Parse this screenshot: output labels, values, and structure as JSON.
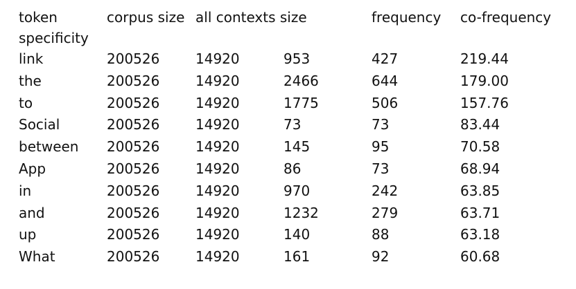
{
  "table": {
    "headers": [
      "token specificity",
      "corpus size",
      "all contexts size",
      "",
      "frequency",
      "co-frequency"
    ],
    "rows": [
      [
        "link",
        "200526",
        "14920",
        "953",
        "427",
        "219.44"
      ],
      [
        "the",
        "200526",
        "14920",
        "2466",
        "644",
        "179.00"
      ],
      [
        "to",
        "200526",
        "14920",
        "1775",
        "506",
        "157.76"
      ],
      [
        "Social",
        "200526",
        "14920",
        "73",
        "73",
        "83.44"
      ],
      [
        "between",
        "200526",
        "14920",
        "145",
        "95",
        "70.58"
      ],
      [
        "App",
        "200526",
        "14920",
        "86",
        "73",
        "68.94"
      ],
      [
        "in",
        "200526",
        "14920",
        "970",
        "242",
        "63.85"
      ],
      [
        "and",
        "200526",
        "14920",
        "1232",
        "279",
        "63.71"
      ],
      [
        "up",
        "200526",
        "14920",
        "140",
        "88",
        "63.18"
      ],
      [
        "What",
        "200526",
        "14920",
        "161",
        "92",
        "60.68"
      ]
    ]
  }
}
